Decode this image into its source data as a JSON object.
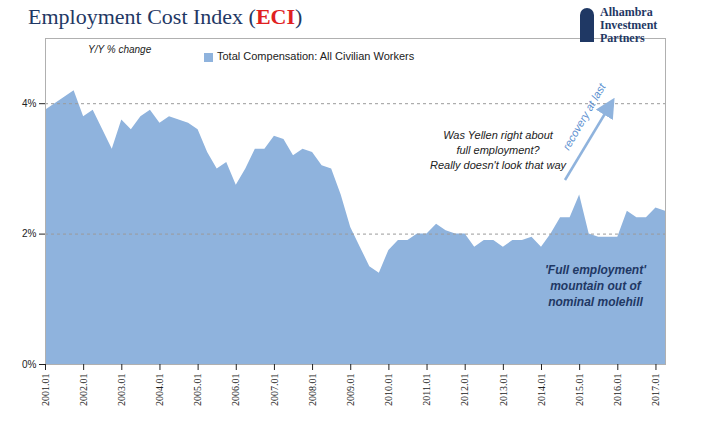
{
  "chart_data": {
    "type": "area",
    "title": "Employment Cost Index (ECI)",
    "subtitle": "Y/Y % change",
    "categories": [
      "2001.01",
      null,
      null,
      null,
      "2002.01",
      null,
      null,
      null,
      "2003.01",
      null,
      null,
      null,
      "2004.01",
      null,
      null,
      null,
      "2005.01",
      null,
      null,
      null,
      "2006.01",
      null,
      null,
      null,
      "2007.01",
      null,
      null,
      null,
      "2008.01",
      null,
      null,
      null,
      "2009.01",
      null,
      null,
      null,
      "2010.01",
      null,
      null,
      null,
      "2011.01",
      null,
      null,
      null,
      "2012.01",
      null,
      null,
      null,
      "2013.01",
      null,
      null,
      null,
      "2014.01",
      null,
      null,
      null,
      "2015.01",
      null,
      null,
      null,
      "2016.01",
      null,
      null,
      null,
      "2017.01",
      null
    ],
    "series": [
      {
        "name": "Total Compensation: All Civilian Workers",
        "color": "#8fb3dd",
        "values": [
          3.9,
          4.0,
          4.1,
          4.2,
          3.8,
          3.9,
          3.6,
          3.3,
          3.75,
          3.6,
          3.8,
          3.9,
          3.7,
          3.8,
          3.75,
          3.7,
          3.6,
          3.25,
          3.0,
          3.1,
          2.75,
          3.0,
          3.3,
          3.3,
          3.5,
          3.45,
          3.2,
          3.3,
          3.25,
          3.05,
          3.0,
          2.6,
          2.1,
          1.8,
          1.5,
          1.4,
          1.75,
          1.9,
          1.9,
          2.0,
          2.0,
          2.15,
          2.05,
          2.0,
          2.0,
          1.8,
          1.9,
          1.9,
          1.8,
          1.9,
          1.9,
          1.95,
          1.8,
          2.0,
          2.25,
          2.25,
          2.6,
          2.0,
          1.95,
          1.95,
          1.95,
          2.35,
          2.25,
          2.25,
          2.4,
          2.35
        ]
      }
    ],
    "ylim": [
      0,
      5
    ],
    "yticks": [
      {
        "value": 0,
        "label": "0%"
      },
      {
        "value": 2,
        "label": "2%"
      },
      {
        "value": 4,
        "label": "4%"
      }
    ],
    "grid": true,
    "legend": "top-left",
    "annotations": [
      [
        "Was Yellen right about",
        "full employment?",
        "Really doesn't look that way"
      ],
      [
        "recovery at last"
      ],
      [
        "'Full employment'",
        "mountain out of",
        "nominal molehill"
      ]
    ],
    "logo": [
      "Alhambra",
      "Investment",
      "Partners"
    ]
  }
}
